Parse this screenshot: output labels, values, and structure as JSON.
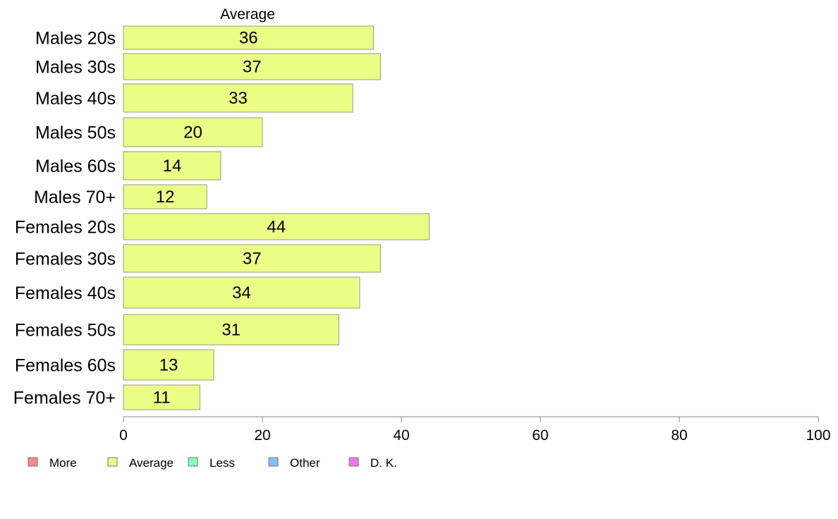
{
  "chart_data": {
    "type": "bar",
    "orientation": "horizontal",
    "categories": [
      "Males 20s",
      "Males 30s",
      "Males 40s",
      "Males 50s",
      "Males 60s",
      "Males 70+",
      "Females 20s",
      "Females 30s",
      "Females 40s",
      "Females 50s",
      "Females 60s",
      "Females 70+"
    ],
    "series": [
      {
        "name": "Average",
        "values": [
          36,
          37,
          33,
          20,
          14,
          12,
          44,
          37,
          34,
          31,
          13,
          11
        ],
        "color": "#EBFF87"
      }
    ],
    "title": "",
    "column_header": "Average",
    "xlim": [
      0,
      100
    ],
    "x_ticks": [
      0,
      20,
      40,
      60,
      80,
      100
    ],
    "grid": false,
    "legend_placement": "bottom-left",
    "legend": [
      {
        "label": "More",
        "color": "#FF8888"
      },
      {
        "label": "Average",
        "color": "#EBFF87"
      },
      {
        "label": "Less",
        "color": "#88FFBB"
      },
      {
        "label": "Other",
        "color": "#88BBFF"
      },
      {
        "label": "D. K.",
        "color": "#EE77EE"
      }
    ],
    "bar_border_color": "#9A9A7A"
  }
}
